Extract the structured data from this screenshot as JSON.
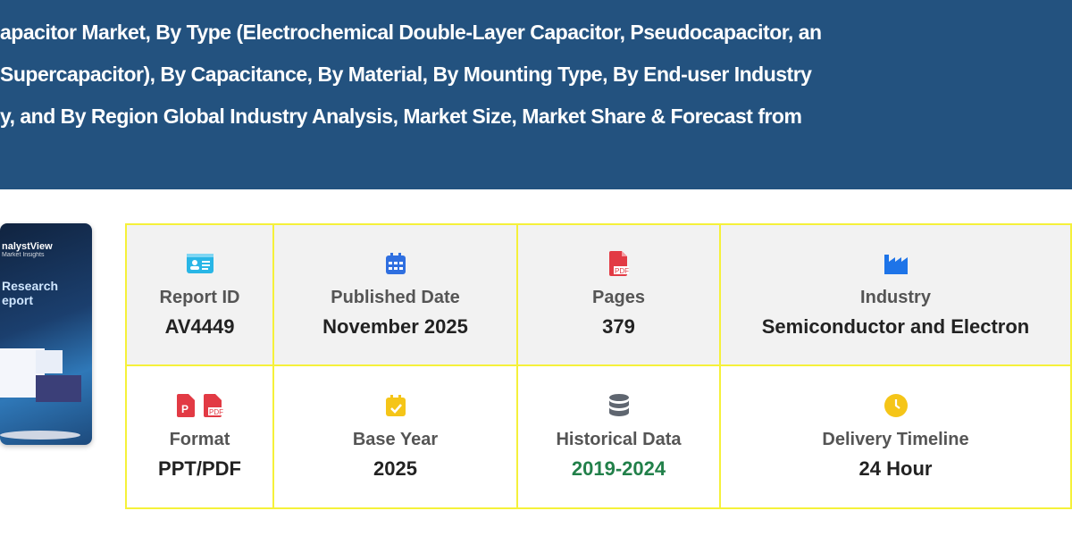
{
  "header": {
    "title_lines": [
      "apacitor Market, By Type (Electrochemical Double-Layer Capacitor, Pseudocapacitor, an",
      "Supercapacitor), By Capacitance, By Material, By Mounting Type, By End-user Industry",
      "y, and By Region Global Industry Analysis, Market Size, Market Share & Forecast from"
    ],
    "background": "#23527f"
  },
  "cover": {
    "brand": "nalystView",
    "tagline": "Market Insights",
    "title_1": "Research",
    "title_2": "eport"
  },
  "details": [
    {
      "label": "Report ID",
      "value": "AV4449",
      "icon": "id-card-icon",
      "color": "#29b6e6"
    },
    {
      "label": "Published Date",
      "value": "November 2025",
      "icon": "calendar-icon",
      "color": "#2f6fe0"
    },
    {
      "label": "Pages",
      "value": "379",
      "icon": "pdf-file-icon",
      "color": "#e23a44"
    },
    {
      "label": "Industry",
      "value": "Semiconductor and Electron",
      "icon": "industry-icon",
      "color": "#1e74e8"
    },
    {
      "label": "Format",
      "value": "PPT/PDF",
      "icon": "ppt-pdf-icons",
      "color": "#e23a44"
    },
    {
      "label": "Base Year",
      "value": "2025",
      "icon": "calendar-check-icon",
      "color": "#f5c518"
    },
    {
      "label": "Historical Data",
      "value": "2019-2024",
      "icon": "database-icon",
      "color": "#5f6670",
      "value_color": "#22804a"
    },
    {
      "label": "Delivery Timeline",
      "value": "24 Hour",
      "icon": "clock-icon",
      "color": "#f5c518"
    }
  ],
  "border_color": "#f5f13a"
}
